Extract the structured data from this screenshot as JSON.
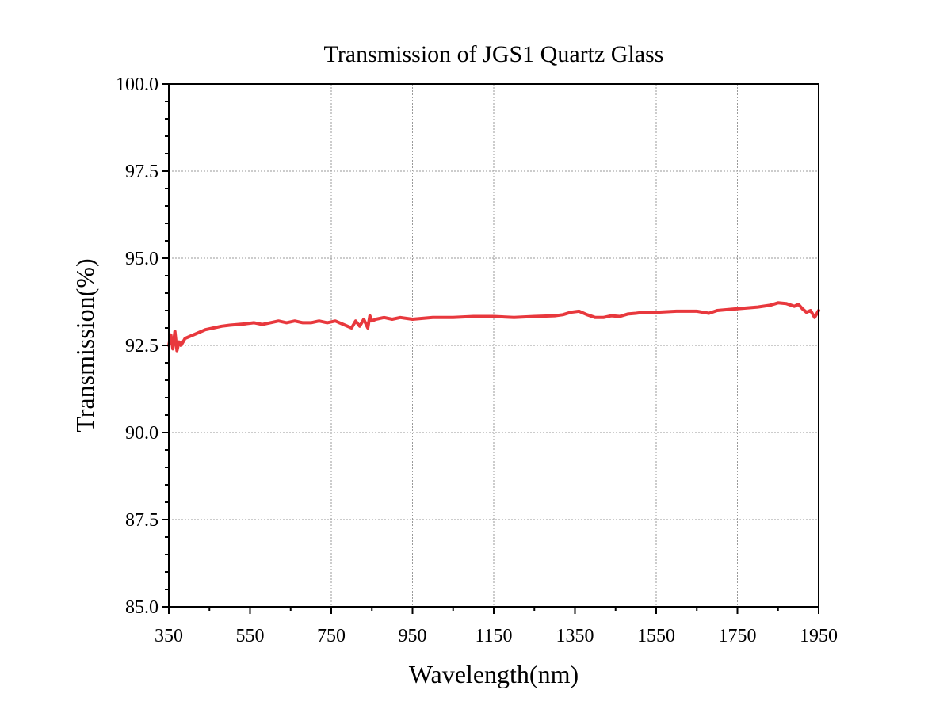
{
  "chart_data": {
    "type": "line",
    "title": "Transmission of JGS1 Quartz Glass",
    "xlabel": "Wavelength(nm)",
    "ylabel": "Transmission(%)",
    "xlim": [
      350,
      1950
    ],
    "ylim": [
      85.0,
      100.0
    ],
    "x_ticks": [
      350,
      550,
      750,
      950,
      1150,
      1350,
      1550,
      1750,
      1950
    ],
    "x_tick_labels": [
      "350",
      "550",
      "750",
      "950",
      "1150",
      "1350",
      "1550",
      "1750",
      "1950"
    ],
    "y_ticks": [
      85.0,
      87.5,
      90.0,
      92.5,
      95.0,
      97.5,
      100.0
    ],
    "y_tick_labels": [
      "85.0",
      "87.5",
      "90.0",
      "92.5",
      "95.0",
      "97.5",
      "100.0"
    ],
    "grid": true,
    "color": "#e8383d",
    "series": [
      {
        "x": [
          350,
          355,
          360,
          365,
          370,
          375,
          380,
          390,
          400,
          420,
          440,
          460,
          480,
          500,
          520,
          540,
          560,
          580,
          600,
          620,
          640,
          660,
          680,
          700,
          720,
          740,
          760,
          780,
          800,
          810,
          820,
          830,
          840,
          845,
          850,
          860,
          880,
          900,
          920,
          950,
          1000,
          1050,
          1100,
          1150,
          1200,
          1250,
          1300,
          1320,
          1340,
          1360,
          1380,
          1400,
          1420,
          1440,
          1460,
          1480,
          1500,
          1520,
          1550,
          1600,
          1650,
          1680,
          1700,
          1750,
          1800,
          1830,
          1850,
          1870,
          1890,
          1900,
          1910,
          1920,
          1930,
          1940,
          1950
        ],
        "y": [
          92.5,
          92.8,
          92.4,
          92.9,
          92.35,
          92.6,
          92.5,
          92.7,
          92.75,
          92.85,
          92.95,
          93.0,
          93.05,
          93.08,
          93.1,
          93.12,
          93.15,
          93.1,
          93.15,
          93.2,
          93.15,
          93.2,
          93.15,
          93.15,
          93.2,
          93.15,
          93.2,
          93.1,
          93.0,
          93.2,
          93.05,
          93.25,
          93.0,
          93.35,
          93.2,
          93.25,
          93.3,
          93.25,
          93.3,
          93.25,
          93.3,
          93.3,
          93.33,
          93.33,
          93.3,
          93.33,
          93.35,
          93.38,
          93.45,
          93.48,
          93.38,
          93.3,
          93.3,
          93.35,
          93.33,
          93.4,
          93.42,
          93.45,
          93.45,
          93.48,
          93.48,
          93.42,
          93.5,
          93.55,
          93.6,
          93.65,
          93.72,
          93.7,
          93.62,
          93.68,
          93.55,
          93.45,
          93.5,
          93.3,
          93.5
        ]
      }
    ]
  }
}
